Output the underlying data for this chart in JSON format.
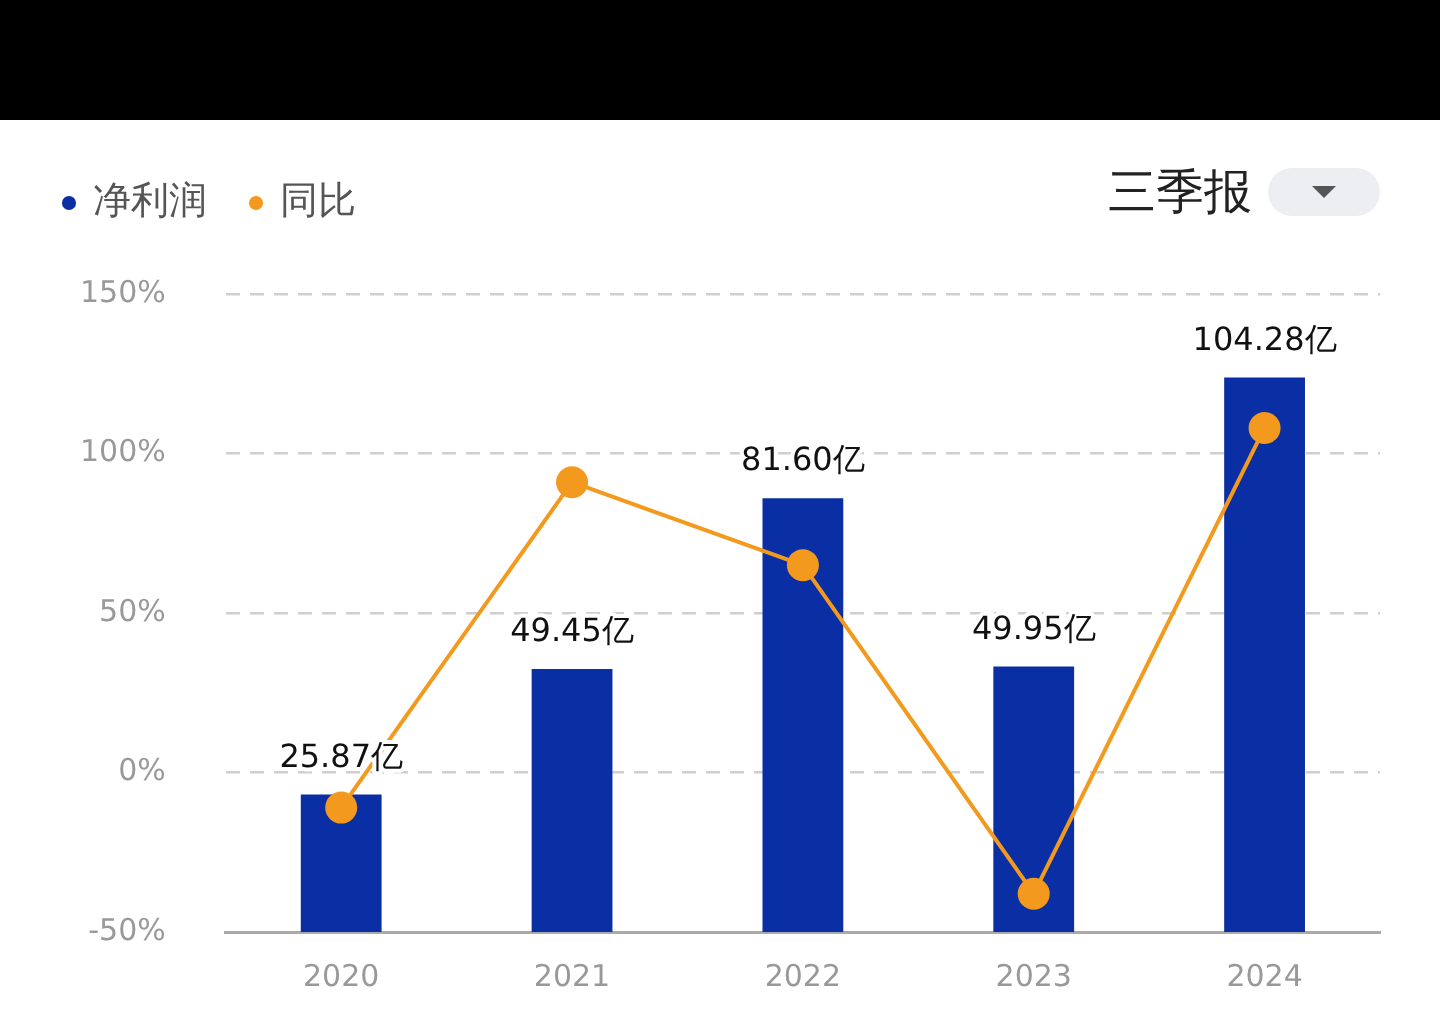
{
  "chart_data": {
    "type": "bar",
    "categories": [
      "2020",
      "2021",
      "2022",
      "2023",
      "2024"
    ],
    "series": [
      {
        "name": "净利润",
        "axis": "y2",
        "color": "#0a2ea3",
        "values": [
          25.87,
          49.45,
          81.6,
          49.95,
          104.28
        ],
        "value_labels": [
          "25.87亿",
          "49.45亿",
          "81.60亿",
          "49.95亿",
          "104.28亿"
        ]
      },
      {
        "name": "同比",
        "type": "line",
        "color": "#f39a1e",
        "values": [
          -11,
          91,
          65,
          -38,
          108
        ],
        "marker": "circle",
        "line_style": "solid"
      }
    ],
    "ylim": [
      -50,
      150
    ],
    "yticks": [
      {
        "value": -50,
        "label": "-50%"
      },
      {
        "value": 0,
        "label": "0%"
      },
      {
        "value": 50,
        "label": "50%"
      },
      {
        "value": 100,
        "label": "100%"
      },
      {
        "value": 150,
        "label": "150%"
      }
    ],
    "y2lim": [
      0,
      120
    ],
    "grid": "y",
    "legend": "top left",
    "annotations": [
      "三季报"
    ]
  }
}
